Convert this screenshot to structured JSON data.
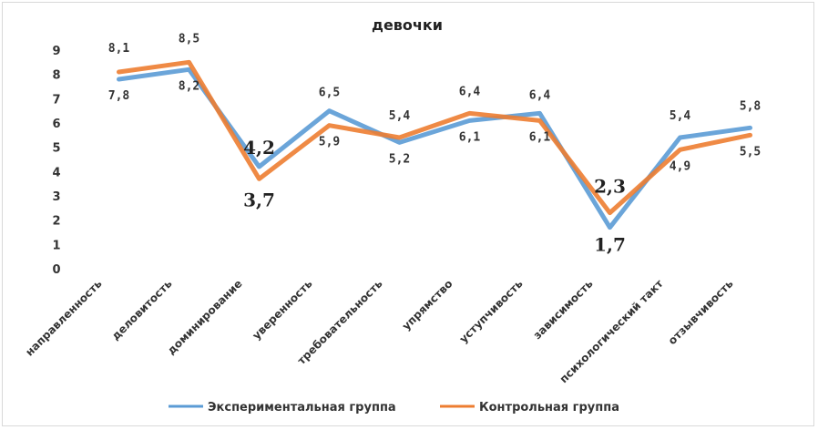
{
  "chart_data": {
    "type": "line",
    "title": "девочки",
    "categories": [
      "направленность",
      "деловитость",
      "доминирование",
      "уверенность",
      "требовательность",
      "упрямство",
      "уступчивость",
      "зависимость",
      "психологический такт",
      "отзывчивость"
    ],
    "series": [
      {
        "name": "Экспериментальная группа",
        "color": "#5b9bd5",
        "values": [
          7.8,
          8.2,
          4.2,
          6.5,
          5.2,
          6.1,
          6.4,
          1.7,
          5.4,
          5.8
        ],
        "labels": [
          "7,8",
          "8,2",
          "4,2",
          "6,5",
          "5,2",
          "6,1",
          "6,4",
          "1,7",
          "5,4",
          "5,8"
        ]
      },
      {
        "name": "Контрольная группа",
        "color": "#ed7d31",
        "values": [
          8.1,
          8.5,
          3.7,
          5.9,
          5.4,
          6.4,
          6.1,
          2.3,
          4.9,
          5.5
        ],
        "labels": [
          "8,1",
          "8,5",
          "3,7",
          "5,9",
          "5,4",
          "6,4",
          "6,1",
          "2,3",
          "4,9",
          "5,5"
        ]
      }
    ],
    "yticks": [
      "0",
      "1",
      "2",
      "3",
      "4",
      "5",
      "6",
      "7",
      "8",
      "9"
    ],
    "ylim": [
      0,
      9
    ],
    "grid": false,
    "legend": "bottom"
  }
}
